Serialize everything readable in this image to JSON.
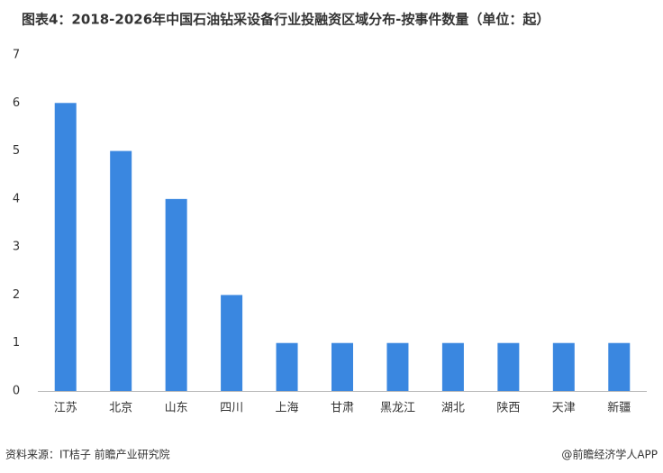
{
  "chart_data": {
    "type": "bar",
    "title": "图表4：2018-2026年中国石油钻采设备行业投融资区域分布-按事件数量（单位：起）",
    "categories": [
      "江苏",
      "北京",
      "山东",
      "四川",
      "上海",
      "甘肃",
      "黑龙江",
      "湖北",
      "陕西",
      "天津",
      "新疆"
    ],
    "values": [
      6,
      5,
      4,
      2,
      1,
      1,
      1,
      1,
      1,
      1,
      1
    ],
    "color": "#3a87e0",
    "ylim": [
      0,
      7
    ],
    "yticks": [
      0,
      1,
      2,
      3,
      4,
      5,
      6,
      7
    ],
    "grid": false,
    "source": "资料来源：IT桔子  前瞻产业研究院",
    "credit": "@前瞻经济学人APP"
  }
}
